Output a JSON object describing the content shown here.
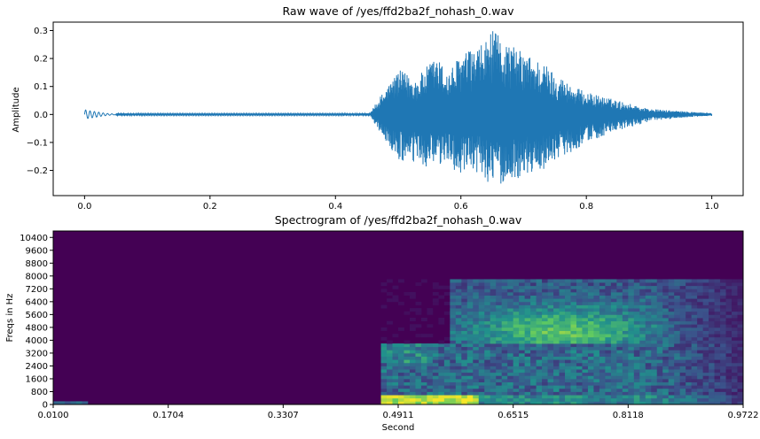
{
  "chart_data": [
    {
      "type": "line",
      "title": "Raw wave of /yes/ffd2ba2f_nohash_0.wav",
      "xlabel": "",
      "ylabel": "Amplitude",
      "xlim": [
        -0.05,
        1.05
      ],
      "ylim": [
        -0.29,
        0.33
      ],
      "xticks": [
        0.0,
        0.2,
        0.4,
        0.6,
        0.8,
        1.0
      ],
      "xtick_labels": [
        "0.0",
        "0.2",
        "0.4",
        "0.6",
        "0.8",
        "1.0"
      ],
      "yticks": [
        0.3,
        0.2,
        0.1,
        0.0,
        -0.1,
        -0.2
      ],
      "ytick_labels": [
        "0.3",
        "0.2",
        "0.1",
        "0.0",
        "−0.1",
        "−0.2"
      ],
      "grid": false,
      "color": "#1f77b4",
      "envelope": {
        "x": [
          0.0,
          0.02,
          0.05,
          0.1,
          0.2,
          0.3,
          0.4,
          0.455,
          0.47,
          0.5,
          0.53,
          0.56,
          0.58,
          0.6,
          0.63,
          0.65,
          0.68,
          0.7,
          0.73,
          0.75,
          0.78,
          0.8,
          0.85,
          0.9,
          0.95,
          1.0
        ],
        "pos": [
          0.012,
          0.012,
          0.004,
          0.003,
          0.003,
          0.003,
          0.003,
          0.004,
          0.06,
          0.16,
          0.13,
          0.21,
          0.15,
          0.22,
          0.24,
          0.3,
          0.25,
          0.22,
          0.19,
          0.15,
          0.1,
          0.08,
          0.05,
          0.02,
          0.012,
          0.005
        ],
        "neg": [
          -0.012,
          -0.012,
          -0.004,
          -0.003,
          -0.003,
          -0.003,
          -0.003,
          -0.004,
          -0.06,
          -0.17,
          -0.18,
          -0.2,
          -0.17,
          -0.23,
          -0.21,
          -0.26,
          -0.24,
          -0.22,
          -0.2,
          -0.16,
          -0.13,
          -0.1,
          -0.06,
          -0.025,
          -0.012,
          -0.005
        ]
      }
    },
    {
      "type": "heatmap",
      "title": "Spectrogram of /yes/ffd2ba2f_nohash_0.wav",
      "xlabel": "Second",
      "ylabel": "Freqs in Hz",
      "xlim": [
        0.01,
        0.9722
      ],
      "ylim": [
        0,
        10800
      ],
      "xticks": [
        0.01,
        0.1704,
        0.3307,
        0.4911,
        0.6515,
        0.8118,
        0.9722
      ],
      "xtick_labels": [
        "0.0100",
        "0.1704",
        "0.3307",
        "0.4911",
        "0.6515",
        "0.8118",
        "0.9722"
      ],
      "yticks": [
        0,
        800,
        1600,
        2400,
        3200,
        4000,
        4800,
        5600,
        6400,
        7200,
        8000,
        8800,
        9600,
        10400
      ],
      "ytick_labels": [
        "0",
        "800",
        "1600",
        "2400",
        "3200",
        "4000",
        "4800",
        "5600",
        "6400",
        "7200",
        "8000",
        "8800",
        "9600",
        "10400"
      ],
      "colormap": "viridis",
      "colors": {
        "low": "#440154",
        "mid": "#21918c",
        "high": "#fde725"
      },
      "onset_seconds": 0.47,
      "upper_band_start_seconds": 0.56,
      "upper_band_max_hz": 7800,
      "fade_end_seconds": 0.9722
    }
  ]
}
